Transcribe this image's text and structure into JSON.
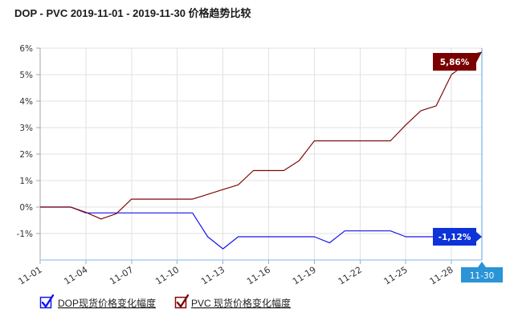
{
  "chart_data": {
    "type": "line",
    "title": "DOP - PVC 2019-11-01 - 2019-11-30 价格趋势比较",
    "xlabel": "",
    "ylabel": "",
    "x": [
      "11-01",
      "11-02",
      "11-03",
      "11-04",
      "11-05",
      "11-06",
      "11-07",
      "11-08",
      "11-09",
      "11-10",
      "11-11",
      "11-12",
      "11-13",
      "11-14",
      "11-15",
      "11-16",
      "11-17",
      "11-18",
      "11-19",
      "11-20",
      "11-21",
      "11-22",
      "11-23",
      "11-24",
      "11-25",
      "11-26",
      "11-27",
      "11-28",
      "11-29",
      "11-30"
    ],
    "xticks": [
      "11-01",
      "11-04",
      "11-07",
      "11-10",
      "11-13",
      "11-16",
      "11-19",
      "11-22",
      "11-25",
      "11-28"
    ],
    "hover_x": "11-30",
    "ylim": [
      -2,
      6
    ],
    "yticks": [
      6,
      5,
      4,
      3,
      2,
      1,
      0,
      -1
    ],
    "ytick_labels": [
      "6%",
      "5%",
      "4%",
      "3%",
      "2%",
      "1%",
      "0%",
      "-1%"
    ],
    "grid": true,
    "legend": "bottom-left",
    "series": [
      {
        "name": "DOP现货价格变化幅度",
        "color": "#1414f0",
        "label_color": "#0d33d9",
        "checked": true,
        "hover_label": "-1,12%",
        "values": [
          0,
          0,
          0,
          -0.22,
          -0.22,
          -0.22,
          -0.22,
          -0.22,
          -0.22,
          -0.22,
          -0.22,
          -1.12,
          -1.58,
          -1.12,
          -1.12,
          -1.12,
          -1.12,
          -1.12,
          -1.12,
          -1.35,
          -0.9,
          -0.9,
          -0.9,
          -0.9,
          -1.12,
          -1.12,
          -1.12,
          -1.12,
          -1.12,
          -1.12
        ]
      },
      {
        "name": "PVC 现货价格变化幅度",
        "color": "#7d0a0a",
        "label_color": "#7a0000",
        "checked": true,
        "hover_label": "5,86%",
        "values": [
          0,
          0,
          0,
          -0.2,
          -0.45,
          -0.25,
          0.3,
          0.3,
          0.3,
          0.3,
          0.3,
          0.48,
          0.66,
          0.84,
          1.38,
          1.38,
          1.38,
          1.75,
          2.5,
          2.5,
          2.5,
          2.5,
          2.5,
          2.5,
          3.1,
          3.64,
          3.82,
          5.0,
          5.43,
          5.86
        ]
      }
    ]
  },
  "colors": {
    "crosshair": "#5aa5de",
    "hover_x_box": "#2a94d6"
  }
}
